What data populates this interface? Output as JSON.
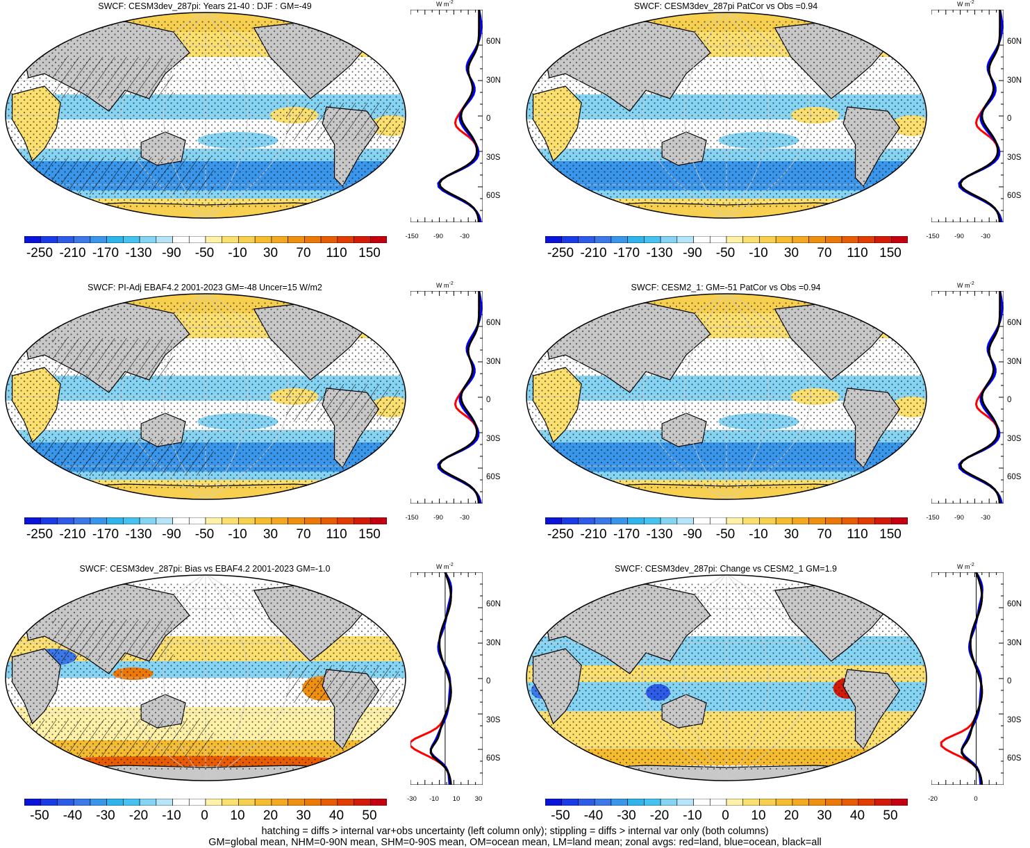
{
  "panels": [
    {
      "title": "SWCF: CESM3dev_287pi: Years 21-40 : DJF : GM=-49",
      "type": "absolute",
      "colorbar_labels": [
        "-250",
        "-210",
        "-170",
        "-130",
        "-90",
        "-50",
        "-10",
        "30",
        "70",
        "110",
        "150"
      ],
      "zonal_xticks": [
        "-150",
        "-90",
        "-30"
      ],
      "hatching": true
    },
    {
      "title": "SWCF: CESM3dev_287pi PatCor vs Obs =0.94",
      "type": "absolute",
      "colorbar_labels": [
        "-250",
        "-210",
        "-170",
        "-130",
        "-90",
        "-50",
        "-10",
        "30",
        "70",
        "110",
        "150"
      ],
      "zonal_xticks": [
        "-150",
        "-90",
        "-30"
      ],
      "hatching": false
    },
    {
      "title": "SWCF: PI-Adj EBAF4.2 2001-2023 GM=-48 Uncer=15 W/m2",
      "type": "absolute",
      "colorbar_labels": [
        "-250",
        "-210",
        "-170",
        "-130",
        "-90",
        "-50",
        "-10",
        "30",
        "70",
        "110",
        "150"
      ],
      "zonal_xticks": [
        "-150",
        "-90",
        "-30"
      ],
      "hatching": true
    },
    {
      "title": "SWCF: CESM2_1: GM=-51 PatCor vs Obs =0.94",
      "type": "absolute",
      "colorbar_labels": [
        "-250",
        "-210",
        "-170",
        "-130",
        "-90",
        "-50",
        "-10",
        "30",
        "70",
        "110",
        "150"
      ],
      "zonal_xticks": [
        "-150",
        "-90",
        "-30"
      ],
      "hatching": false
    },
    {
      "title": "SWCF: CESM3dev_287pi: Bias vs EBAF4.2 2001-2023 GM=-1.0",
      "type": "diff",
      "colorbar_labels": [
        "-50",
        "-40",
        "-30",
        "-20",
        "-10",
        "0",
        "10",
        "20",
        "30",
        "40",
        "50"
      ],
      "zonal_xticks": [
        "-30",
        "-10",
        "10",
        "30"
      ],
      "hatching": true
    },
    {
      "title": "SWCF: CESM3dev_287pi: Change vs CESM2_1 GM=1.9",
      "type": "diff2",
      "colorbar_labels": [
        "-50",
        "-40",
        "-30",
        "-20",
        "-10",
        "0",
        "10",
        "20",
        "30",
        "40",
        "50"
      ],
      "zonal_xticks": [
        "-20",
        "0"
      ],
      "hatching": false
    }
  ],
  "lat_labels": [
    "60N",
    "30N",
    "0",
    "30S",
    "60S"
  ],
  "zonal_unit": "W m",
  "zonal_unit_sup": "-2",
  "colors": {
    "abs_scale": [
      "#0a14d8",
      "#1a3ce6",
      "#2e5ce8",
      "#3c78e8",
      "#3a96ea",
      "#2fb4ec",
      "#45c2f0",
      "#86d4f4",
      "#b6e4f8",
      "#ffffff",
      "#ffffff",
      "#fff2a8",
      "#fbe070",
      "#f8d050",
      "#f6bc30",
      "#f4a820",
      "#f09010",
      "#ec7808",
      "#e85c04",
      "#e23c02",
      "#d41a08",
      "#c40010"
    ],
    "diff_scale": [
      "#0a14d8",
      "#1a3ce6",
      "#2e5ce8",
      "#3c78e8",
      "#3a96ea",
      "#2fb4ec",
      "#45c2f0",
      "#86d4f4",
      "#b6e4f8",
      "#ffffff",
      "#ffffff",
      "#fff2a8",
      "#fbe070",
      "#f8d050",
      "#f6bc30",
      "#f4a820",
      "#f09010",
      "#ec7808",
      "#e85c04",
      "#e23c02",
      "#d41a08",
      "#c40010"
    ],
    "land_gray": "#c8c8c8",
    "zonal_land": "#ff0000",
    "zonal_ocean": "#0000ff",
    "zonal_all": "#000000"
  },
  "footer": {
    "line1": "hatching = diffs > internal var+obs uncertainty (left column only); stippling = diffs > internal var only (both columns)",
    "line2": "GM=global mean, NHM=0-90N mean, SHM=0-90S mean, OM=ocean mean, LM=land mean; zonal avgs: red=land, blue=ocean, black=all"
  }
}
